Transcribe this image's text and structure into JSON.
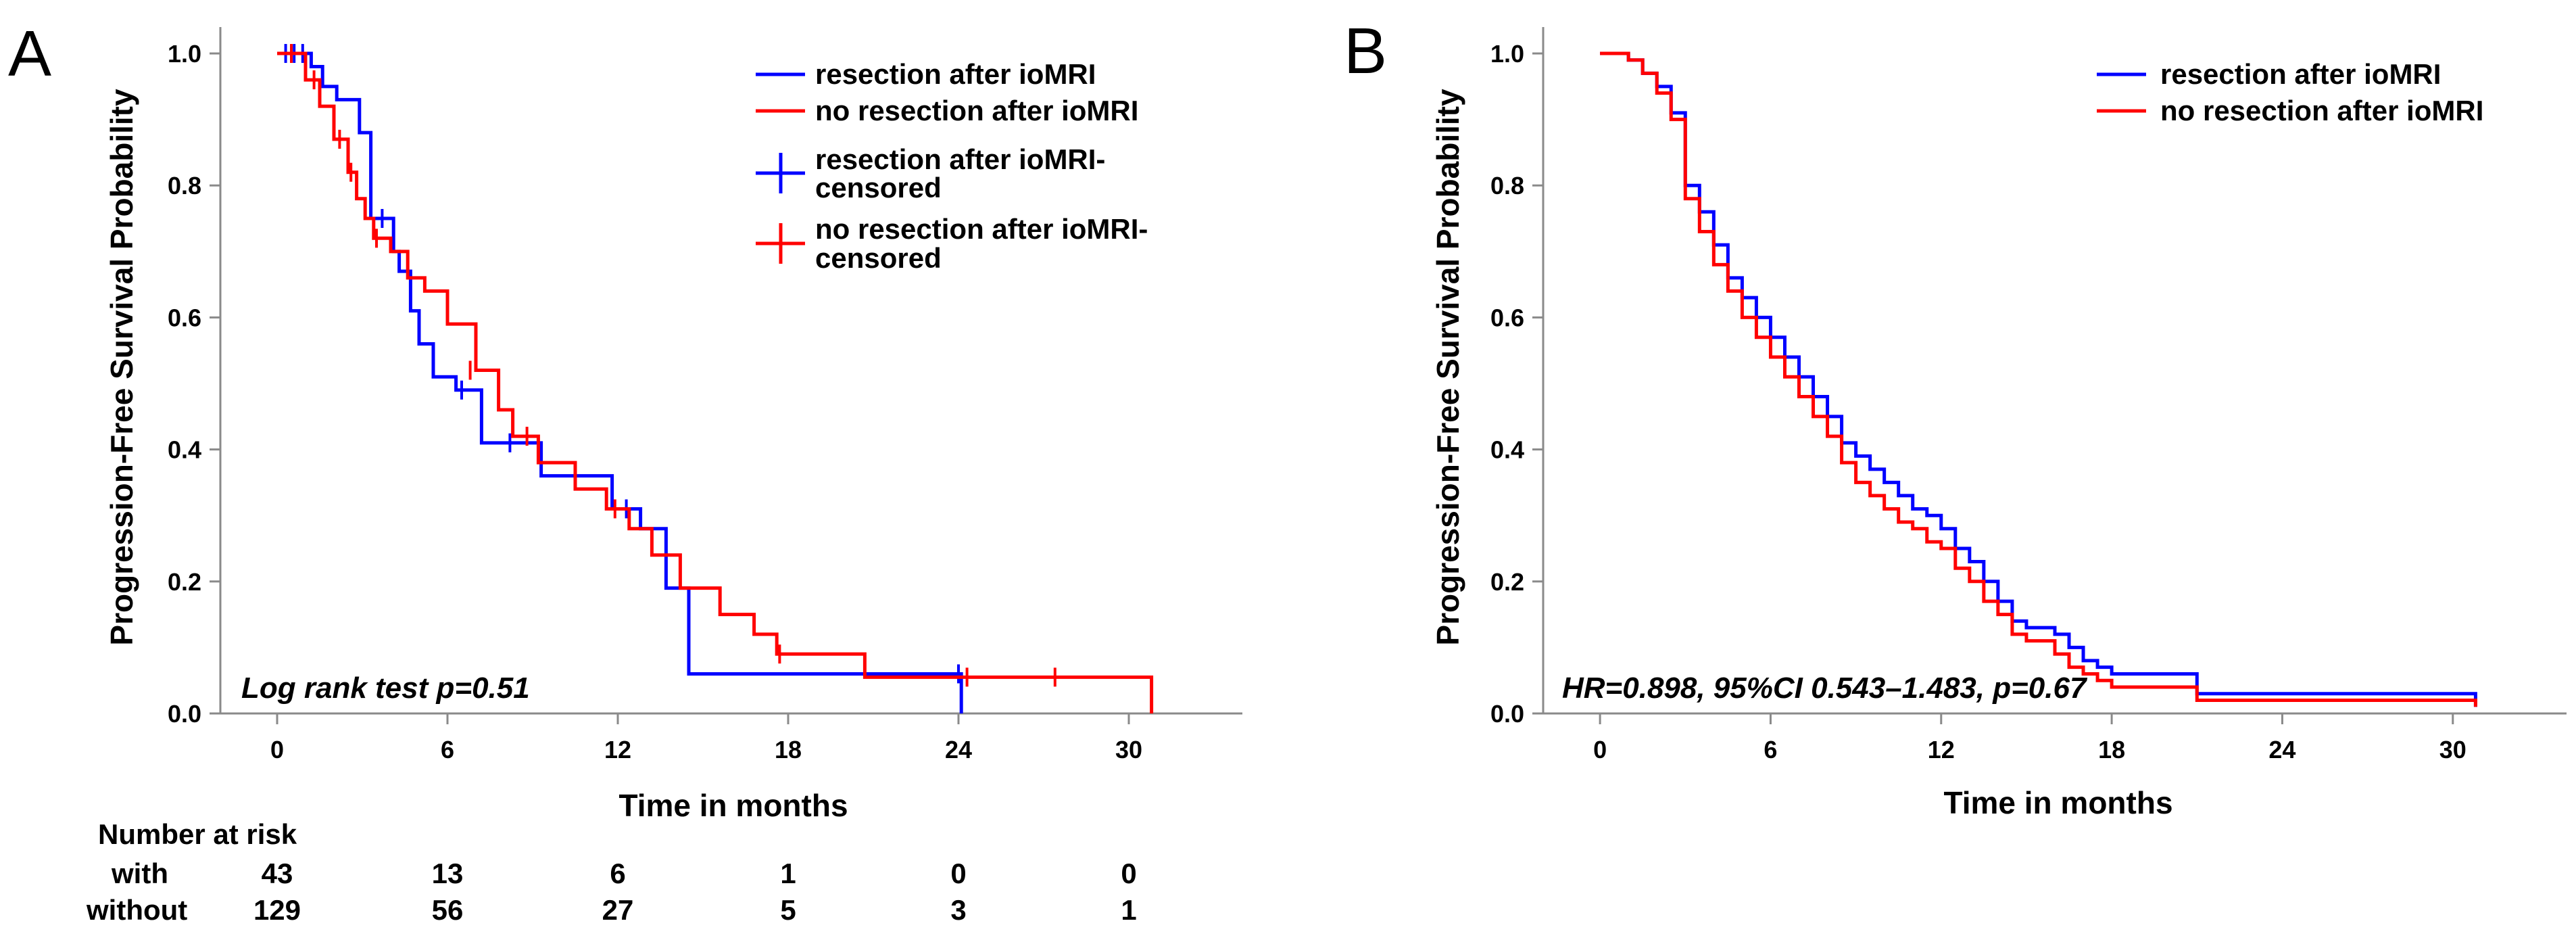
{
  "chart_data": [
    {
      "type": "line",
      "panel_label": "A",
      "title": "",
      "xlabel": "Time in months",
      "ylabel": "Progression-Free Survival Probability",
      "xlim": [
        -2,
        34
      ],
      "ylim": [
        0.0,
        1.04
      ],
      "xticks": [
        0,
        6,
        12,
        18,
        24,
        30
      ],
      "yticks": [
        0.0,
        0.2,
        0.4,
        0.6,
        0.8,
        1.0
      ],
      "ytick_labels": [
        "0.0",
        "0.2",
        "0.4",
        "0.6",
        "0.8",
        "1.0"
      ],
      "grid": false,
      "annotation": "Log rank test  p=0.51",
      "legend": [
        "resection after ioMRI",
        "no resection after ioMRI",
        "resection after ioMRI-censored",
        "no resection after ioMRI-censored"
      ],
      "legend_lines": [
        [
          "resection after ioMRI"
        ],
        [
          "no resection after ioMRI"
        ],
        [
          "resection after ioMRI-",
          "censored"
        ],
        [
          "no resection after ioMRI-",
          "censored"
        ]
      ],
      "series": [
        {
          "name": "resection after ioMRI",
          "color": "#0000ff",
          "x": [
            0,
            1.2,
            1.6,
            2.1,
            2.9,
            3.3,
            4.1,
            4.3,
            4.7,
            5.0,
            5.5,
            6.3,
            7.2,
            8.6,
            9.3,
            10.5,
            11.8,
            12.8,
            13.7,
            14.5,
            24.1
          ],
          "y": [
            1.0,
            0.98,
            0.95,
            0.93,
            0.88,
            0.75,
            0.7,
            0.67,
            0.61,
            0.56,
            0.51,
            0.49,
            0.41,
            0.41,
            0.36,
            0.36,
            0.31,
            0.28,
            0.19,
            0.06,
            0.0
          ],
          "censored_x": [
            0.3,
            0.6,
            0.9,
            3.7,
            6.5,
            8.2,
            12.3,
            24.0
          ],
          "censored_y": [
            1.0,
            1.0,
            1.0,
            0.75,
            0.49,
            0.41,
            0.31,
            0.06
          ]
        },
        {
          "name": "no resection after ioMRI",
          "color": "#ff0000",
          "x": [
            0,
            1.0,
            1.5,
            2.0,
            2.5,
            2.8,
            3.1,
            3.4,
            4.0,
            4.6,
            5.2,
            6.0,
            7.0,
            7.8,
            8.3,
            9.2,
            10.5,
            11.6,
            12.4,
            13.2,
            14.2,
            15.6,
            16.8,
            17.6,
            20.7,
            30.8
          ],
          "y": [
            1.0,
            0.96,
            0.92,
            0.87,
            0.82,
            0.78,
            0.75,
            0.72,
            0.7,
            0.66,
            0.64,
            0.59,
            0.52,
            0.46,
            0.42,
            0.38,
            0.34,
            0.31,
            0.28,
            0.24,
            0.19,
            0.15,
            0.12,
            0.09,
            0.055,
            0.0
          ],
          "censored_x": [
            0.5,
            1.3,
            2.2,
            2.6,
            3.5,
            6.8,
            8.8,
            11.9,
            17.7,
            24.3,
            27.4
          ],
          "censored_y": [
            1.0,
            0.96,
            0.87,
            0.82,
            0.72,
            0.52,
            0.42,
            0.31,
            0.09,
            0.055,
            0.055
          ]
        }
      ],
      "risk_table": {
        "header": "Number at risk",
        "rows": [
          {
            "label": "with",
            "values": [
              "43",
              "13",
              "6",
              "1",
              "0",
              "0"
            ]
          },
          {
            "label": "without",
            "values": [
              "129",
              "56",
              "27",
              "5",
              "3",
              "1"
            ]
          }
        ]
      }
    },
    {
      "type": "line",
      "panel_label": "B",
      "title": "",
      "xlabel": "Time in months",
      "ylabel": "Progression-Free Survival Probability",
      "xlim": [
        -2,
        34
      ],
      "ylim": [
        0.0,
        1.04
      ],
      "xticks": [
        0,
        6,
        12,
        18,
        24,
        30
      ],
      "yticks": [
        0.0,
        0.2,
        0.4,
        0.6,
        0.8,
        1.0
      ],
      "ytick_labels": [
        "0.0",
        "0.2",
        "0.4",
        "0.6",
        "0.8",
        "1.0"
      ],
      "grid": false,
      "annotation": "HR=0.898, 95%CI 0.543–1.483, p=0.67",
      "legend": [
        "resection after ioMRI",
        "no resection after ioMRI"
      ],
      "legend_lines": [
        [
          "resection after ioMRI"
        ],
        [
          "no resection after ioMRI"
        ]
      ],
      "series": [
        {
          "name": "resection after ioMRI",
          "color": "#0000ff",
          "x": [
            0,
            1.0,
            1.5,
            2.0,
            2.5,
            3.0,
            3.5,
            4.0,
            4.5,
            5.0,
            5.5,
            6.0,
            6.5,
            7.0,
            7.5,
            8.0,
            8.5,
            9.0,
            9.5,
            10.0,
            10.5,
            11.0,
            11.5,
            12.0,
            12.5,
            13.0,
            13.5,
            14.0,
            14.5,
            15.0,
            16.0,
            16.5,
            17.0,
            17.5,
            18.0,
            21.0,
            30.8
          ],
          "y": [
            1.0,
            0.99,
            0.97,
            0.95,
            0.91,
            0.8,
            0.76,
            0.71,
            0.66,
            0.63,
            0.6,
            0.57,
            0.54,
            0.51,
            0.48,
            0.45,
            0.41,
            0.39,
            0.37,
            0.35,
            0.33,
            0.31,
            0.3,
            0.28,
            0.25,
            0.23,
            0.2,
            0.17,
            0.14,
            0.13,
            0.12,
            0.1,
            0.08,
            0.07,
            0.06,
            0.03,
            0.01
          ]
        },
        {
          "name": "no resection after ioMRI",
          "color": "#ff0000",
          "x": [
            0,
            1.0,
            1.5,
            2.0,
            2.5,
            3.0,
            3.5,
            4.0,
            4.5,
            5.0,
            5.5,
            6.0,
            6.5,
            7.0,
            7.5,
            8.0,
            8.5,
            9.0,
            9.5,
            10.0,
            10.5,
            11.0,
            11.5,
            12.0,
            12.5,
            13.0,
            13.5,
            14.0,
            14.5,
            15.0,
            16.0,
            16.5,
            17.0,
            17.5,
            18.0,
            21.0,
            30.8
          ],
          "y": [
            1.0,
            0.99,
            0.97,
            0.94,
            0.9,
            0.78,
            0.73,
            0.68,
            0.64,
            0.6,
            0.57,
            0.54,
            0.51,
            0.48,
            0.45,
            0.42,
            0.38,
            0.35,
            0.33,
            0.31,
            0.29,
            0.28,
            0.26,
            0.25,
            0.22,
            0.2,
            0.17,
            0.15,
            0.12,
            0.11,
            0.09,
            0.07,
            0.06,
            0.05,
            0.04,
            0.02,
            0.01
          ]
        }
      ]
    }
  ]
}
